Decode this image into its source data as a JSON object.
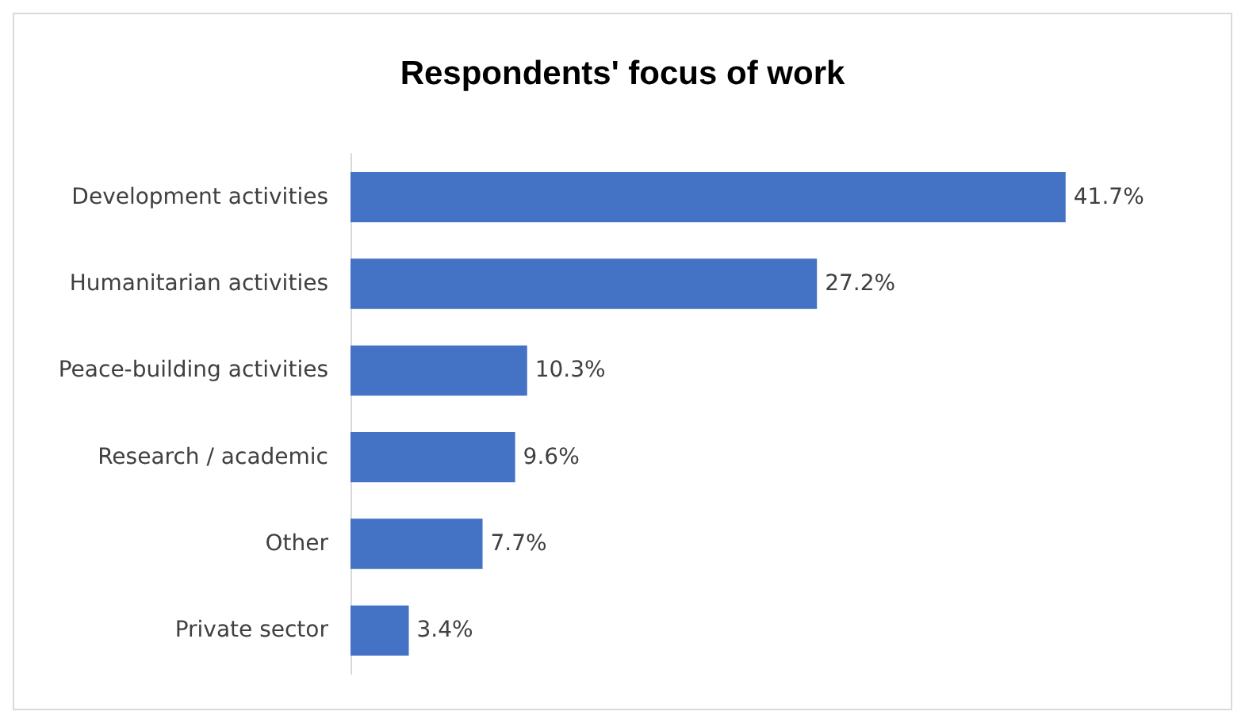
{
  "chart_data": {
    "type": "bar",
    "orientation": "horizontal",
    "title": "Respondents' focus of work",
    "categories": [
      "Development activities",
      "Humanitarian activities",
      "Peace-building activities",
      "Research / academic",
      "Other",
      "Private sector"
    ],
    "values": [
      41.7,
      27.2,
      10.3,
      9.6,
      7.7,
      3.4
    ],
    "value_labels": [
      "41.7%",
      "27.2%",
      "10.3%",
      "9.6%",
      "7.7%",
      "3.4%"
    ],
    "color": "#4472c4"
  }
}
